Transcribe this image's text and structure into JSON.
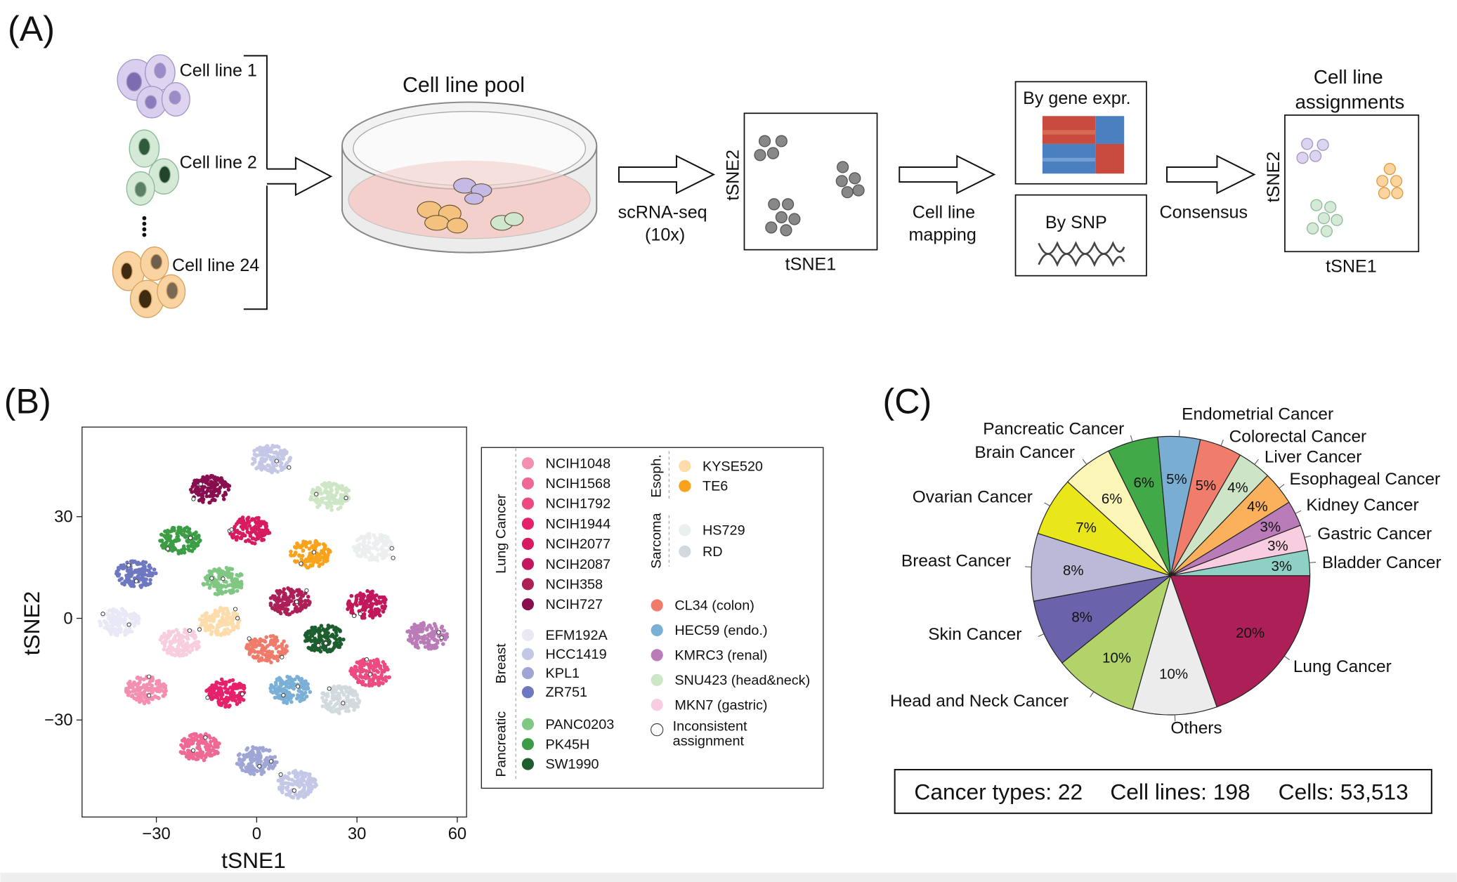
{
  "panels": {
    "a": "(A)",
    "b": "(B)",
    "c": "(C)"
  },
  "panel_a": {
    "cell_line_1": "Cell line 1",
    "cell_line_2": "Cell line 2",
    "cell_line_24": "Cell line 24",
    "pool_title": "Cell line pool",
    "seq_label_1": "scRNA-seq",
    "seq_label_2": "(10x)",
    "tsne1": "tSNE1",
    "tsne2": "tSNE2",
    "mapping_1": "Cell line",
    "mapping_2": "mapping",
    "by_gene": "By gene expr.",
    "by_snp": "By SNP",
    "consensus": "Consensus",
    "assign_1": "Cell line",
    "assign_2": "assignments"
  },
  "chart_data": [
    {
      "type": "scatter",
      "xlabel": "tSNE1",
      "ylabel": "tSNE2",
      "xlim": [
        -50,
        65
      ],
      "ylim": [
        -60,
        55
      ],
      "xticks": [
        "−30",
        "0",
        "30",
        "60"
      ],
      "yticks": [
        "30",
        "0",
        "−30"
      ],
      "xtick_values": [
        -30,
        0,
        30,
        60
      ],
      "ytick_values": [
        30,
        0,
        -30
      ],
      "grid": false,
      "legend_placement": "right",
      "legend": {
        "groups": [
          {
            "name": "Lung Cancer",
            "items": [
              {
                "label": "NCIH1048",
                "color": "#f48fb1"
              },
              {
                "label": "NCIH1568",
                "color": "#ef6994"
              },
              {
                "label": "NCIH1792",
                "color": "#ec4a80"
              },
              {
                "label": "NCIH1944",
                "color": "#e6206a"
              },
              {
                "label": "NCIH2077",
                "color": "#d81b60"
              },
              {
                "label": "NCIH2087",
                "color": "#c2185b"
              },
              {
                "label": "NCIH358",
                "color": "#ad1f57"
              },
              {
                "label": "NCIH727",
                "color": "#880e4f"
              }
            ]
          },
          {
            "name": "Breast",
            "items": [
              {
                "label": "EFM192A",
                "color": "#e8e8f6"
              },
              {
                "label": "HCC1419",
                "color": "#c5c7e6"
              },
              {
                "label": "KPL1",
                "color": "#9fa6d6"
              },
              {
                "label": "ZR751",
                "color": "#6d78c0"
              }
            ]
          },
          {
            "name": "Pancreatic",
            "items": [
              {
                "label": "PANC0203",
                "color": "#7fc783"
              },
              {
                "label": "PK45H",
                "color": "#3d9d45"
              },
              {
                "label": "SW1990",
                "color": "#1d5e2f"
              }
            ]
          },
          {
            "name": "Esoph.",
            "items": [
              {
                "label": "KYSE520",
                "color": "#fddcab"
              },
              {
                "label": "TE6",
                "color": "#f9a21b"
              }
            ]
          },
          {
            "name": "Sarcoma",
            "items": [
              {
                "label": "HS729",
                "color": "#eceff0"
              },
              {
                "label": "RD",
                "color": "#d2dadd"
              }
            ]
          },
          {
            "name": "",
            "items": [
              {
                "label": "CL34 (colon)",
                "color": "#f07b6b"
              },
              {
                "label": "HEC59 (endo.)",
                "color": "#7aafd6"
              },
              {
                "label": "KMRC3 (renal)",
                "color": "#ba7cb8"
              },
              {
                "label": "SNU423 (head&neck)",
                "color": "#cde6c6"
              },
              {
                "label": "MKN7 (gastric)",
                "color": "#f9cde0"
              },
              {
                "label": "Inconsistent assignment",
                "color": "#ffffff"
              }
            ]
          }
        ]
      },
      "clusters": [
        {
          "line": "HCC1419",
          "x": 4,
          "y": 47
        },
        {
          "line": "NCIH727",
          "x": -14,
          "y": 38
        },
        {
          "line": "SNU423 (head&neck)",
          "x": 22,
          "y": 36
        },
        {
          "line": "NCIH2077",
          "x": -2,
          "y": 26
        },
        {
          "line": "PK45H",
          "x": -23,
          "y": 23
        },
        {
          "line": "TE6",
          "x": 16,
          "y": 19
        },
        {
          "line": "HS729",
          "x": 35,
          "y": 21
        },
        {
          "line": "ZR751",
          "x": -36,
          "y": 13
        },
        {
          "line": "PANC0203",
          "x": -10,
          "y": 11
        },
        {
          "line": "NCIH358",
          "x": 10,
          "y": 5
        },
        {
          "line": "NCIH2087",
          "x": 33,
          "y": 4
        },
        {
          "line": "EFM192A",
          "x": -41,
          "y": -1
        },
        {
          "line": "KYSE520",
          "x": -11,
          "y": -1
        },
        {
          "line": "SW1990",
          "x": 20,
          "y": -6
        },
        {
          "line": "KMRC3 (renal)",
          "x": 51,
          "y": -5
        },
        {
          "line": "MKN7 (gastric)",
          "x": -23,
          "y": -7
        },
        {
          "line": "CL34 (colon)",
          "x": 3,
          "y": -9
        },
        {
          "line": "NCIH1048",
          "x": -33,
          "y": -21
        },
        {
          "line": "NCIH1944",
          "x": -9,
          "y": -22
        },
        {
          "line": "HEC59 (endo.)",
          "x": 10,
          "y": -21
        },
        {
          "line": "NCIH1792",
          "x": 34,
          "y": -16
        },
        {
          "line": "RD",
          "x": 25,
          "y": -24
        },
        {
          "line": "NCIH1568",
          "x": -17,
          "y": -38
        },
        {
          "line": "KPL1",
          "x": 0,
          "y": -42
        },
        {
          "line": "HCC1419",
          "x": 12,
          "y": -49
        }
      ]
    },
    {
      "type": "pie",
      "slices": [
        {
          "label": "Lung Cancer",
          "value": 20,
          "pct": "20%",
          "color": "#ad1f57"
        },
        {
          "label": "Others",
          "value": 10,
          "pct": "10%",
          "color": "#ececec"
        },
        {
          "label": "Head and Neck Cancer",
          "value": 10,
          "pct": "10%",
          "color": "#b2d36a"
        },
        {
          "label": "Skin Cancer",
          "value": 8,
          "pct": "8%",
          "color": "#6a62ab"
        },
        {
          "label": "Breast Cancer",
          "value": 8,
          "pct": "8%",
          "color": "#bbb8d8"
        },
        {
          "label": "Ovarian Cancer",
          "value": 7,
          "pct": "7%",
          "color": "#e9e619"
        },
        {
          "label": "Brain Cancer",
          "value": 6,
          "pct": "6%",
          "color": "#fbf6b5"
        },
        {
          "label": "Pancreatic Cancer",
          "value": 6,
          "pct": "6%",
          "color": "#41a948"
        },
        {
          "label": "Endometrial Cancer",
          "value": 5,
          "pct": "5%",
          "color": "#7aadd2"
        },
        {
          "label": "Colorectal Cancer",
          "value": 5,
          "pct": "5%",
          "color": "#f07c6b"
        },
        {
          "label": "Liver Cancer",
          "value": 4,
          "pct": "4%",
          "color": "#cde5c6"
        },
        {
          "label": "Esophageal Cancer",
          "value": 4,
          "pct": "4%",
          "color": "#fbb05c"
        },
        {
          "label": "Kidney Cancer",
          "value": 3,
          "pct": "3%",
          "color": "#ba7cb8"
        },
        {
          "label": "Gastric Cancer",
          "value": 3,
          "pct": "3%",
          "color": "#f8cddf"
        },
        {
          "label": "Bladder Cancer",
          "value": 3,
          "pct": "3%",
          "color": "#8dd1c6"
        }
      ]
    }
  ],
  "summary": {
    "cancer_types": "Cancer types: 22",
    "cell_lines": "Cell lines: 198",
    "cells": "Cells: 53,513"
  }
}
